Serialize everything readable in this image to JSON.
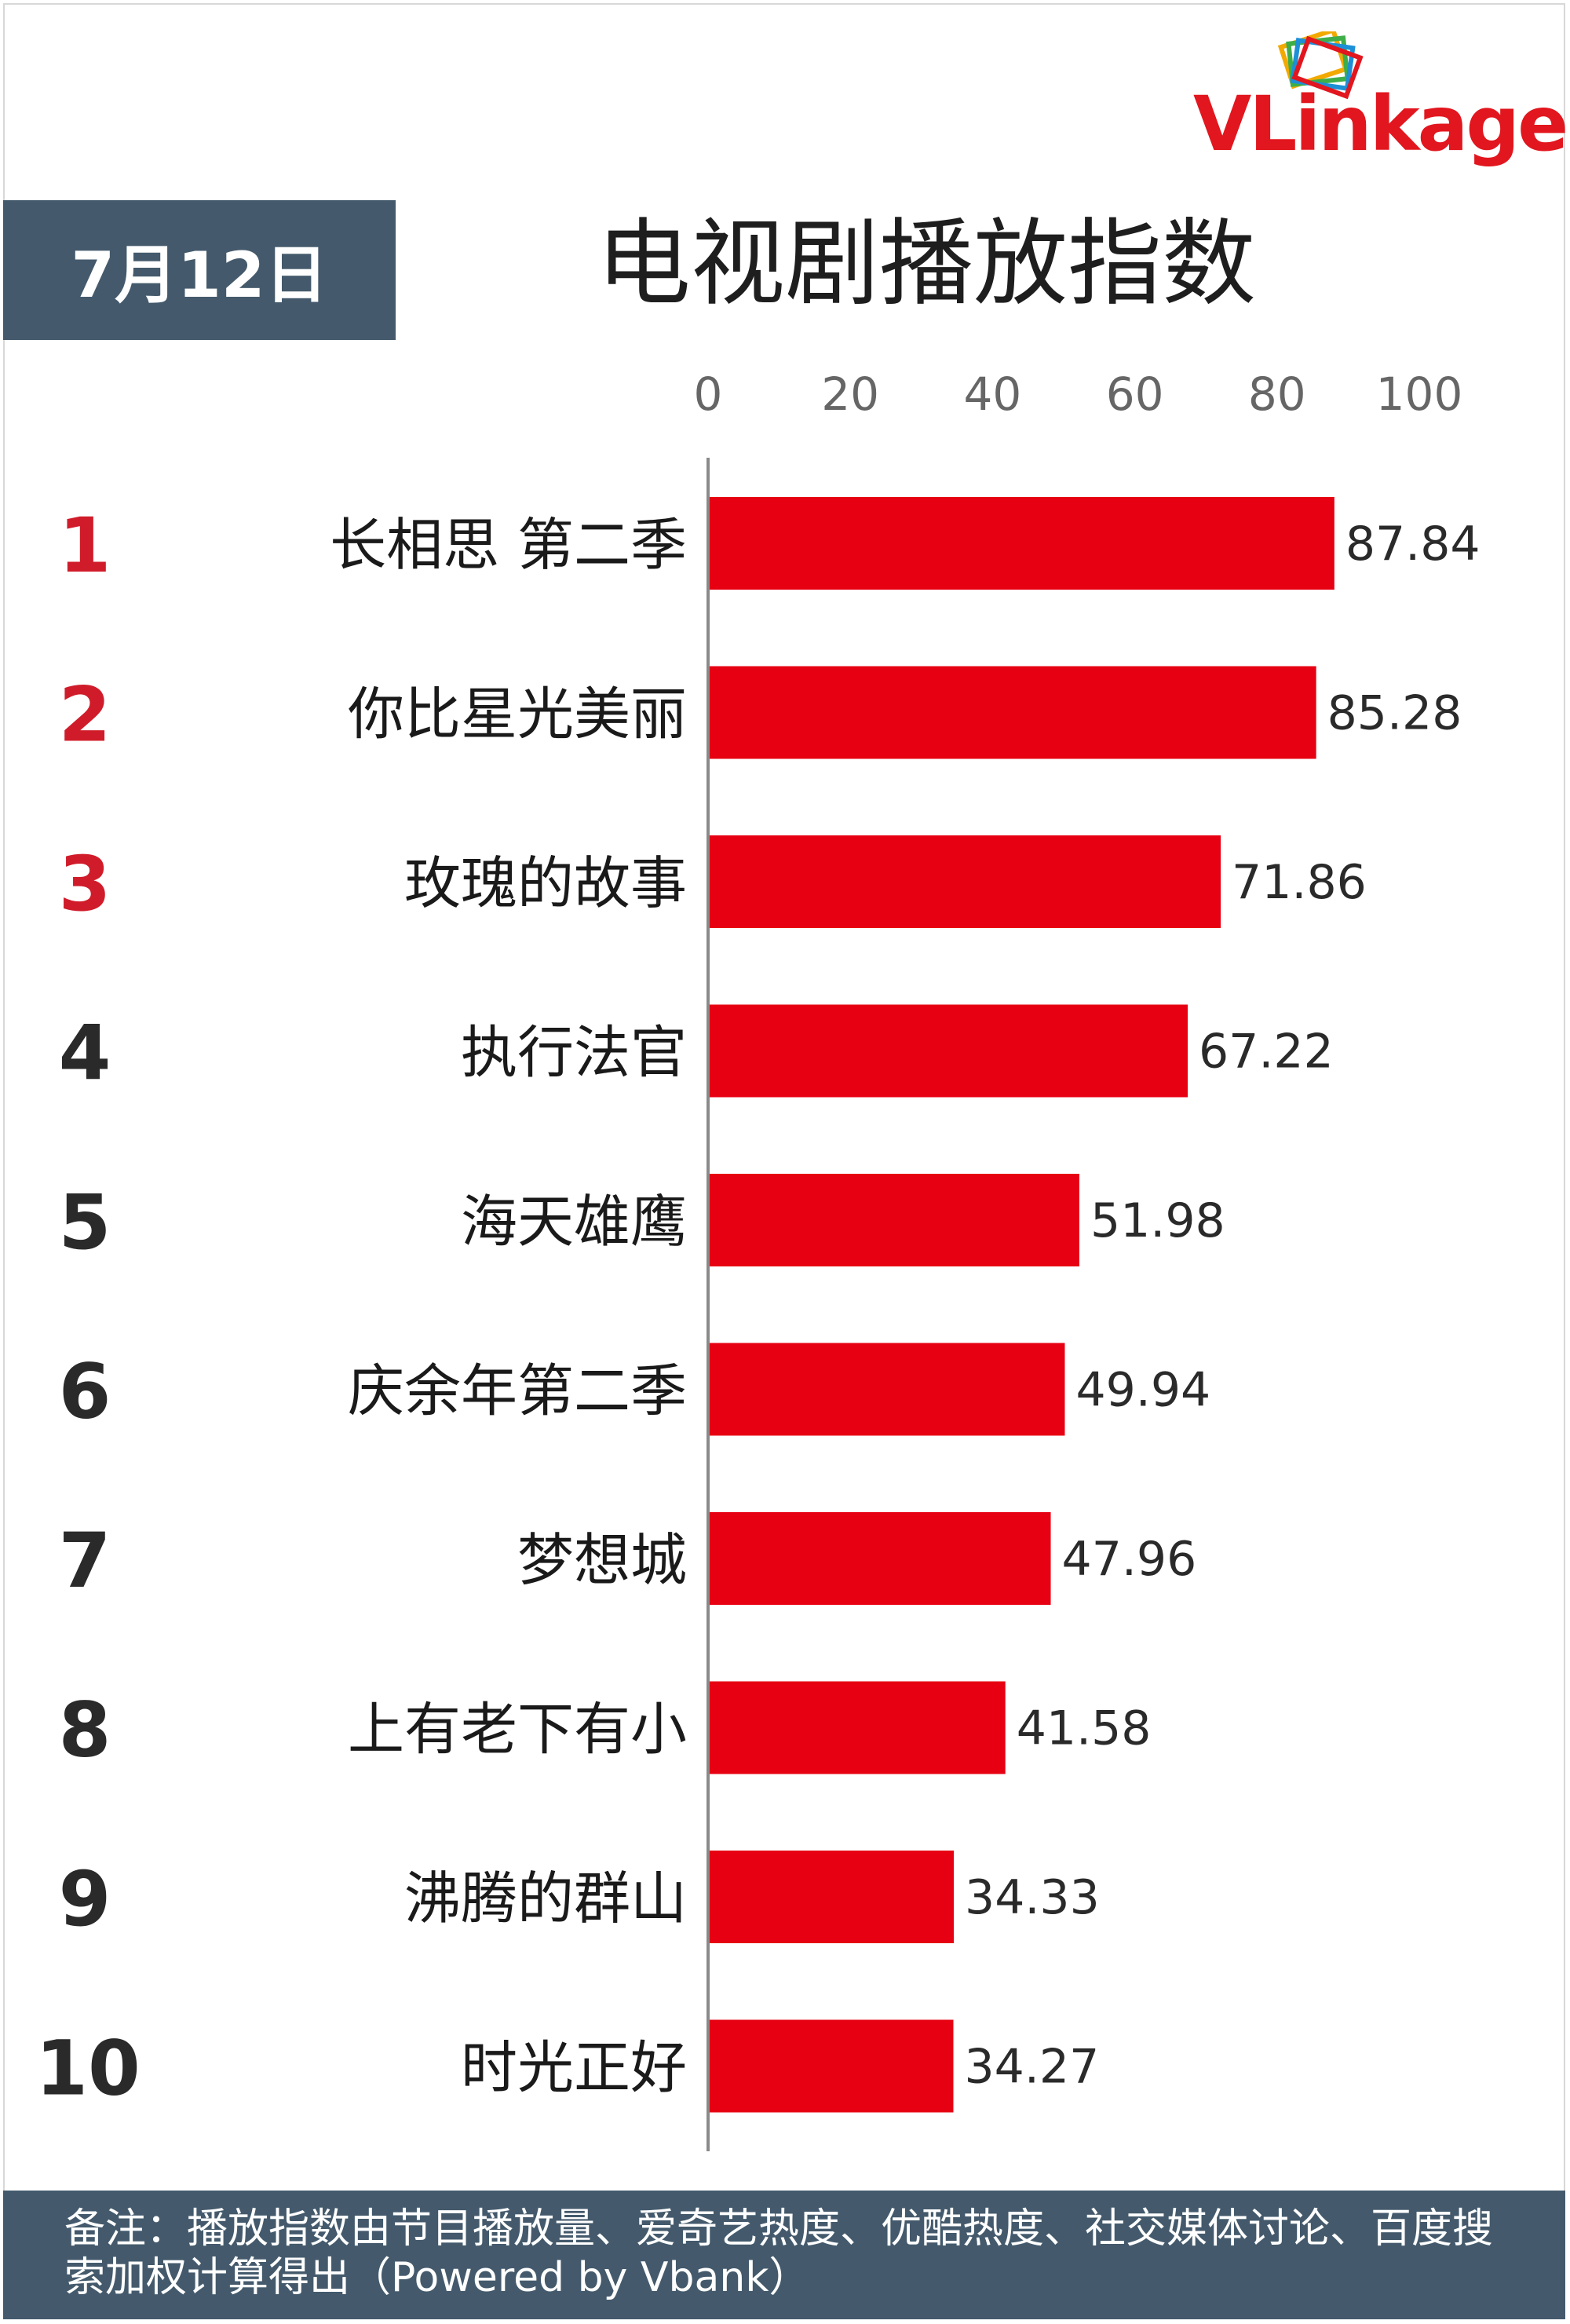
{
  "logo": {
    "text": "VLinkage",
    "icon": "stacked-cards-icon"
  },
  "header": {
    "date": "7月12日",
    "title": "电视剧播放指数"
  },
  "footer": {
    "note": "备注：播放指数由节目播放量、爱奇艺热度、优酷热度、社交媒体讨论、百度搜索加权计算得出（Powered by Vbank）"
  },
  "colors": {
    "bar": "#e60012",
    "rank_top3": "#d01c2a",
    "rank_other": "#2a2a2a",
    "banner": "#445a6c"
  },
  "chart_data": {
    "type": "bar",
    "orientation": "horizontal",
    "title": "电视剧播放指数",
    "xlim": [
      0,
      100
    ],
    "ticks": [
      0,
      20,
      40,
      60,
      80,
      100
    ],
    "grid": false,
    "ranks": [
      "1",
      "2",
      "3",
      "4",
      "5",
      "6",
      "7",
      "8",
      "9",
      "10"
    ],
    "categories": [
      "长相思 第二季",
      "你比星光美丽",
      "玫瑰的故事",
      "执行法官",
      "海天雄鹰",
      "庆余年第二季",
      "梦想城",
      "上有老下有小",
      "沸腾的群山",
      "时光正好"
    ],
    "values": [
      87.84,
      85.28,
      71.86,
      67.22,
      51.98,
      49.94,
      47.96,
      41.58,
      34.33,
      34.27
    ]
  }
}
